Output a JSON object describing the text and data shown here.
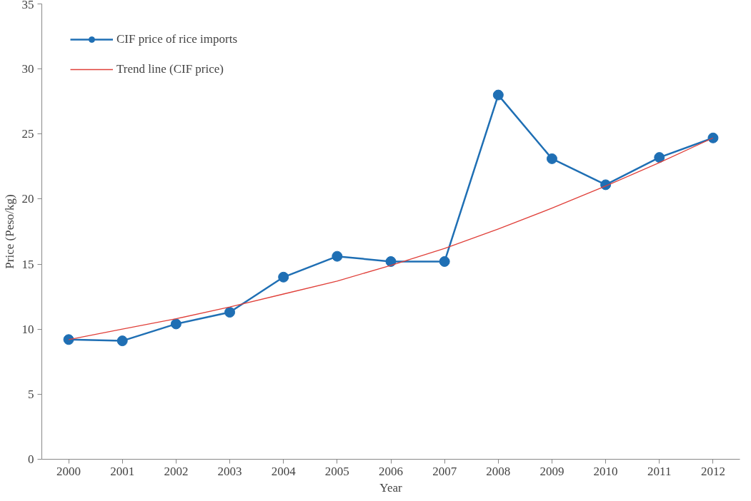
{
  "chart_data": {
    "type": "line",
    "xlabel": "Year",
    "ylabel": "Price (Peso/kg)",
    "categories": [
      "2000",
      "2001",
      "2002",
      "2003",
      "2004",
      "2005",
      "2006",
      "2007",
      "2008",
      "2009",
      "2010",
      "2011",
      "2012"
    ],
    "series": [
      {
        "name": "CIF price of rice imports",
        "color": "#1f6fb4",
        "marker": "circle",
        "values": [
          9.2,
          9.1,
          10.4,
          11.3,
          14.0,
          15.6,
          15.2,
          15.2,
          28.0,
          23.1,
          21.1,
          23.2,
          24.7
        ]
      },
      {
        "name": "Trend line (CIF price)",
        "color": "#e0403a",
        "marker": "none",
        "values": [
          9.2,
          10.0,
          10.8,
          11.7,
          12.7,
          13.7,
          14.9,
          16.2,
          17.7,
          19.3,
          21.0,
          22.8,
          24.7
        ]
      }
    ],
    "ylim": [
      0,
      35
    ],
    "yticks": [
      0,
      5,
      10,
      15,
      20,
      25,
      30,
      35
    ],
    "grid": false,
    "legend": "top left",
    "line_style": "solid"
  }
}
